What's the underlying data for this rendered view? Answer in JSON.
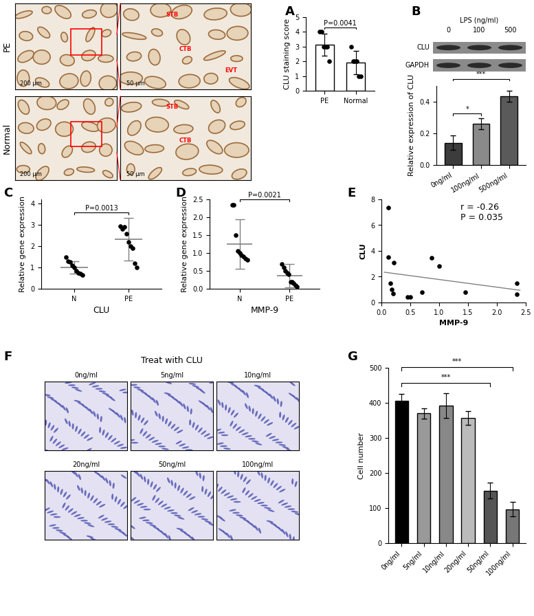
{
  "chart_data": [
    {
      "panel_label": "A",
      "type": "bar",
      "categories": [
        "PE",
        "Normal"
      ],
      "values": [
        3.15,
        1.9
      ],
      "errors": [
        0.75,
        0.8
      ],
      "points": [
        [
          4.0,
          4.0,
          3.0,
          3.0,
          3.0,
          2.0
        ],
        [
          3.0,
          2.0,
          2.0,
          2.0,
          1.0,
          1.0
        ]
      ],
      "color": "#ffffff",
      "y_label": "CLU staining score",
      "ylim": [
        0,
        5
      ],
      "yticks": [
        0,
        1,
        2,
        3,
        4,
        5
      ],
      "annotations": [
        {
          "text": "P=0.0041",
          "between": [
            0,
            1
          ]
        }
      ]
    },
    {
      "panel_label": "B",
      "type": "bar",
      "categories": [
        "0ng/ml",
        "100ng/ml",
        "500ng/ml"
      ],
      "values": [
        0.14,
        0.26,
        0.435
      ],
      "errors": [
        0.045,
        0.035,
        0.035
      ],
      "colors": [
        "#3c3c3c",
        "#8a8a8a",
        "#5a5a5a"
      ],
      "y_label": "Relative expression of CLU",
      "ylim": [
        0,
        0.5
      ],
      "yticks": [
        {
          "value": 0,
          "label": "0.0"
        },
        {
          "value": 0.2,
          "label": "0.2"
        },
        {
          "value": 0.4,
          "label": "0.4"
        }
      ],
      "annotations": [
        {
          "text": "*",
          "between": [
            0,
            1
          ]
        },
        {
          "text": "***",
          "between": [
            0,
            2
          ]
        }
      ]
    },
    {
      "panel_label": "C",
      "type": "dot",
      "categories": [
        "N",
        "PE"
      ],
      "points": [
        [
          1.5,
          1.3,
          1.25,
          1.1,
          1.0,
          0.85,
          0.75,
          0.7,
          0.65
        ],
        [
          2.95,
          2.8,
          2.9,
          2.6,
          2.2,
          2.0,
          1.9,
          1.2,
          1.0
        ]
      ],
      "mean": [
        1.0,
        2.32
      ],
      "sd": [
        0.28,
        1.0
      ],
      "x_label": "CLU",
      "y_label": "Relative gene expression",
      "ylim": [
        0,
        4.2
      ],
      "yticks": [
        0,
        1,
        2,
        3,
        4
      ],
      "annotations": [
        {
          "text": "P=0.0013",
          "between": [
            0,
            1
          ]
        }
      ]
    },
    {
      "panel_label": "D",
      "type": "dot",
      "categories": [
        "N",
        "PE"
      ],
      "points": [
        [
          2.35,
          2.35,
          1.5,
          1.05,
          1.0,
          0.95,
          0.9,
          0.85,
          0.8
        ],
        [
          0.7,
          0.6,
          0.5,
          0.45,
          0.4,
          0.2,
          0.2,
          0.15,
          0.1,
          0.05
        ]
      ],
      "mean": [
        1.25,
        0.37
      ],
      "sd": [
        0.7,
        0.33
      ],
      "x_label": "MMP-9",
      "y_label": "Relative gene expression",
      "ylim": [
        0,
        2.5
      ],
      "yticks": [
        {
          "value": 0,
          "label": "0.0"
        },
        {
          "value": 0.5,
          "label": "0.5"
        },
        {
          "value": 1,
          "label": "1.0"
        },
        {
          "value": 1.5,
          "label": "1.5"
        },
        {
          "value": 2,
          "label": "2.0"
        },
        {
          "value": 2.5,
          "label": "2.5"
        }
      ],
      "annotations": [
        {
          "text": "P=0.0021",
          "between": [
            0,
            1
          ]
        }
      ]
    },
    {
      "panel_label": "E",
      "type": "scatter",
      "x": [
        0.12,
        0.12,
        0.15,
        0.18,
        0.2,
        0.22,
        0.45,
        0.5,
        0.7,
        0.87,
        1.0,
        1.45,
        2.35,
        2.35
      ],
      "y": [
        7.35,
        3.5,
        1.5,
        1.0,
        0.7,
        3.1,
        0.45,
        0.45,
        0.8,
        3.45,
        2.85,
        0.8,
        1.5,
        0.65
      ],
      "fit": {
        "x": [
          0.05,
          2.4
        ],
        "y": [
          2.35,
          0.95
        ]
      },
      "x_label": "MMP-9",
      "y_label": "CLU",
      "xlim": [
        0,
        2.5
      ],
      "xticks": [
        {
          "value": 0,
          "label": "0.0"
        },
        {
          "value": 0.5,
          "label": "0.5"
        },
        {
          "value": 1,
          "label": "1.0"
        },
        {
          "value": 1.5,
          "label": "1.5"
        },
        {
          "value": 2,
          "label": "2.0"
        },
        {
          "value": 2.5,
          "label": "2.5"
        }
      ],
      "ylim": [
        0,
        8
      ],
      "yticks": [
        0,
        2,
        4,
        6,
        8
      ],
      "texts": [
        "r = -0.26",
        "P = 0.035"
      ]
    },
    {
      "panel_label": "G",
      "type": "bar",
      "categories": [
        "0ng/ml",
        "5ng/ml",
        "10ng/ml",
        "20ng/ml",
        "50ng/ml",
        "100ng/ml"
      ],
      "values": [
        405,
        370,
        392,
        357,
        150,
        97
      ],
      "errors": [
        20,
        15,
        35,
        20,
        22,
        20
      ],
      "colors": [
        "#000000",
        "#999999",
        "#888888",
        "#bbbbbb",
        "#555555",
        "#777777"
      ],
      "y_label": "Cell number",
      "ylim": [
        0,
        500
      ],
      "yticks": [
        0,
        100,
        200,
        300,
        400,
        500
      ],
      "annotations": [
        {
          "text": "***",
          "between": [
            0,
            4
          ]
        },
        {
          "text": "***",
          "between": [
            0,
            5
          ]
        }
      ]
    }
  ],
  "images": {
    "A": {
      "rows": [
        "PE",
        "Normal"
      ],
      "scale_bars": [
        "200 μm",
        "50 μm"
      ],
      "cell_labels": [
        [
          "STB",
          "CTB",
          "EVT"
        ],
        [
          "STB",
          "CTB"
        ]
      ]
    },
    "B": {
      "title": "LPS (ng/ml)",
      "lanes": [
        "0",
        "100",
        "500"
      ],
      "bands": [
        "CLU",
        "GAPDH"
      ]
    },
    "F": {
      "panel_label": "F",
      "title": "Treat with CLU",
      "panels": [
        "0ng/ml",
        "5ng/ml",
        "10ng/ml",
        "20ng/ml",
        "50ng/ml",
        "100ng/ml"
      ]
    }
  }
}
